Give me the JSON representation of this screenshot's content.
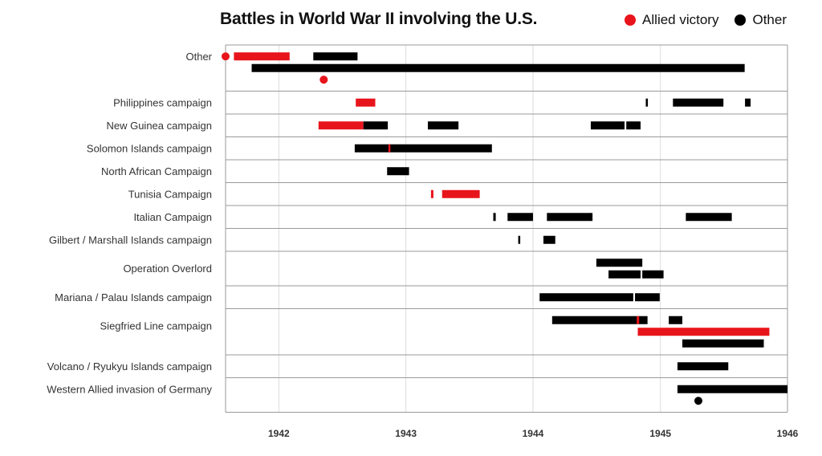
{
  "chart_data": {
    "type": "timeline",
    "title": "Battles in World War II involving the U.S.",
    "legend": [
      {
        "label": "Allied victory",
        "color": "#e8141b"
      },
      {
        "label": "Other",
        "color": "#000000"
      }
    ],
    "legend_position": "top-right",
    "x_axis": {
      "type": "date",
      "range": [
        "1941-08-01",
        "1946-01-01"
      ],
      "ticks": [
        "1942",
        "1943",
        "1944",
        "1945",
        "1946"
      ]
    },
    "grid": true,
    "rows": [
      {
        "label": "Other",
        "lanes": 3,
        "label_lane": 0,
        "items": [
          {
            "kind": "point",
            "date": "1941-08-01",
            "lane": 0,
            "outcome": "allied"
          },
          {
            "kind": "bar",
            "start": "1941-08-25",
            "end": "1942-02-01",
            "lane": 0,
            "outcome": "allied"
          },
          {
            "kind": "bar",
            "start": "1942-04-10",
            "end": "1942-08-15",
            "lane": 0,
            "outcome": "other"
          },
          {
            "kind": "bar",
            "start": "1941-10-15",
            "end": "1945-08-31",
            "lane": 1,
            "outcome": "other"
          },
          {
            "kind": "point",
            "date": "1942-05-10",
            "lane": 2,
            "outcome": "allied"
          }
        ]
      },
      {
        "label": "Philippines campaign",
        "lanes": 1,
        "items": [
          {
            "kind": "bar",
            "start": "1942-08-10",
            "end": "1942-10-05",
            "outcome": "allied"
          },
          {
            "kind": "bar",
            "start": "1944-11-20",
            "end": "1944-11-26",
            "outcome": "other"
          },
          {
            "kind": "bar",
            "start": "1945-02-06",
            "end": "1945-07-01",
            "outcome": "other"
          },
          {
            "kind": "bar",
            "start": "1945-09-01",
            "end": "1945-09-17",
            "outcome": "other"
          }
        ]
      },
      {
        "label": "New Guinea campaign",
        "lanes": 1,
        "items": [
          {
            "kind": "bar",
            "start": "1942-04-25",
            "end": "1942-09-01",
            "outcome": "allied"
          },
          {
            "kind": "bar",
            "start": "1942-09-01",
            "end": "1942-11-10",
            "outcome": "other"
          },
          {
            "kind": "bar",
            "start": "1943-03-05",
            "end": "1943-06-01",
            "outcome": "other"
          },
          {
            "kind": "bar",
            "start": "1944-06-15",
            "end": "1944-06-22",
            "outcome": "other"
          },
          {
            "kind": "bar",
            "start": "1944-06-22",
            "end": "1944-09-20",
            "outcome": "other"
          },
          {
            "kind": "bar",
            "start": "1944-09-25",
            "end": "1944-11-05",
            "outcome": "other"
          }
        ]
      },
      {
        "label": "Solomon Islands campaign",
        "lanes": 1,
        "items": [
          {
            "kind": "bar",
            "start": "1942-08-07",
            "end": "1943-09-05",
            "outcome": "other"
          },
          {
            "kind": "bar",
            "start": "1942-11-13",
            "end": "1942-11-16",
            "outcome": "allied"
          }
        ]
      },
      {
        "label": "North African Campaign",
        "lanes": 1,
        "items": [
          {
            "kind": "bar",
            "start": "1942-11-08",
            "end": "1943-01-10",
            "outcome": "other"
          }
        ]
      },
      {
        "label": "Tunisia Campaign",
        "lanes": 1,
        "items": [
          {
            "kind": "bar",
            "start": "1943-03-14",
            "end": "1943-03-21",
            "outcome": "allied"
          },
          {
            "kind": "bar",
            "start": "1943-04-15",
            "end": "1943-08-01",
            "outcome": "allied"
          }
        ]
      },
      {
        "label": "Italian Campaign",
        "lanes": 1,
        "items": [
          {
            "kind": "bar",
            "start": "1943-09-09",
            "end": "1943-09-16",
            "outcome": "other"
          },
          {
            "kind": "bar",
            "start": "1943-10-20",
            "end": "1944-01-01",
            "outcome": "other"
          },
          {
            "kind": "bar",
            "start": "1944-02-10",
            "end": "1944-06-20",
            "outcome": "other"
          },
          {
            "kind": "bar",
            "start": "1945-03-15",
            "end": "1945-07-25",
            "outcome": "other"
          }
        ]
      },
      {
        "label": "Gilbert / Marshall Islands campaign",
        "lanes": 1,
        "items": [
          {
            "kind": "bar",
            "start": "1943-11-20",
            "end": "1943-11-25",
            "outcome": "other"
          },
          {
            "kind": "bar",
            "start": "1944-01-31",
            "end": "1944-03-05",
            "outcome": "other"
          }
        ]
      },
      {
        "label": "Operation Overlord",
        "lanes": 2,
        "label_lane": 0.5,
        "items": [
          {
            "kind": "bar",
            "start": "1944-07-01",
            "end": "1944-11-10",
            "lane": 0,
            "outcome": "other"
          },
          {
            "kind": "bar",
            "start": "1944-08-05",
            "end": "1944-11-05",
            "lane": 1,
            "outcome": "other"
          },
          {
            "kind": "bar",
            "start": "1944-11-10",
            "end": "1945-01-10",
            "lane": 1,
            "outcome": "other"
          }
        ]
      },
      {
        "label": "Mariana / Palau Islands campaign",
        "lanes": 1,
        "items": [
          {
            "kind": "bar",
            "start": "1944-01-20",
            "end": "1944-10-15",
            "outcome": "other"
          },
          {
            "kind": "bar",
            "start": "1944-10-20",
            "end": "1944-12-30",
            "outcome": "other"
          }
        ]
      },
      {
        "label": "Siegfried Line campaign",
        "lanes": 3,
        "label_lane": 0.5,
        "items": [
          {
            "kind": "bar",
            "start": "1944-02-25",
            "end": "1944-11-25",
            "lane": 0,
            "outcome": "other"
          },
          {
            "kind": "bar",
            "start": "1944-10-25",
            "end": "1944-11-01",
            "lane": 0,
            "outcome": "allied"
          },
          {
            "kind": "bar",
            "start": "1945-01-25",
            "end": "1945-03-05",
            "lane": 0,
            "outcome": "other"
          },
          {
            "kind": "bar",
            "start": "1944-10-28",
            "end": "1945-11-10",
            "lane": 1,
            "outcome": "allied"
          },
          {
            "kind": "bar",
            "start": "1945-03-05",
            "end": "1945-10-25",
            "lane": 2,
            "outcome": "other"
          }
        ]
      },
      {
        "label": "Volcano / Ryukyu Islands campaign",
        "lanes": 1,
        "items": [
          {
            "kind": "bar",
            "start": "1945-02-19",
            "end": "1945-07-15",
            "outcome": "other"
          }
        ]
      },
      {
        "label": "Western Allied invasion of Germany",
        "lanes": 2,
        "label_lane": 0,
        "items": [
          {
            "kind": "bar",
            "start": "1945-02-19",
            "end": "1946-01-01",
            "lane": 0,
            "outcome": "other"
          },
          {
            "kind": "point",
            "date": "1945-04-20",
            "lane": 1,
            "outcome": "other"
          }
        ]
      }
    ]
  }
}
